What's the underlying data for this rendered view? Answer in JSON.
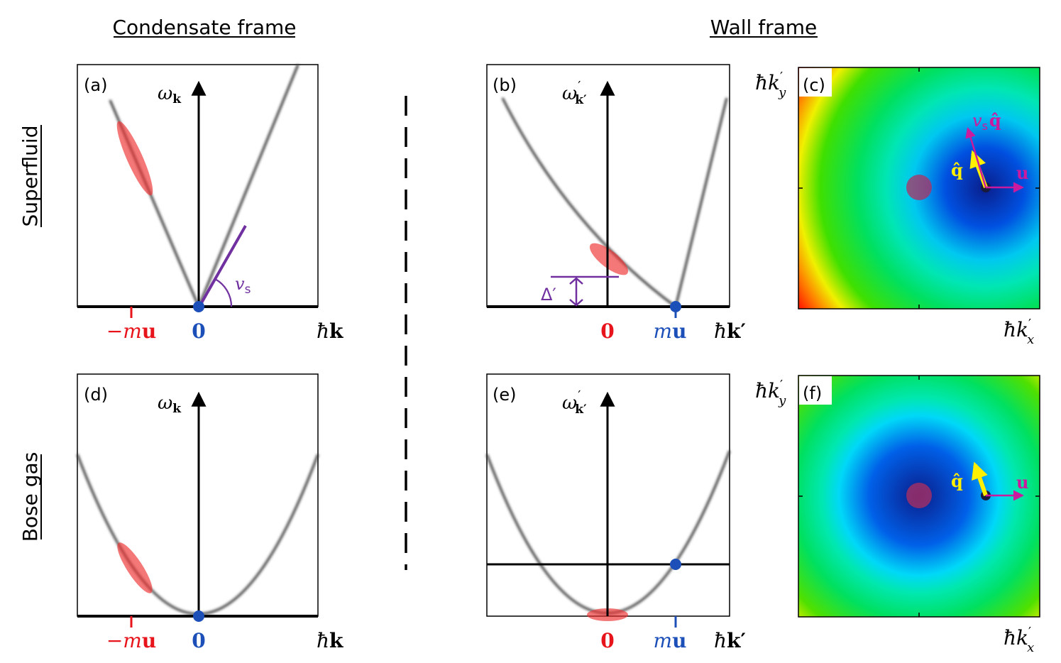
{
  "headers": {
    "left": "Condensate frame",
    "right": "Wall frame",
    "row1": "Superfluid",
    "row2": "Bose gas"
  },
  "panels": {
    "a": "(a)",
    "b": "(b)",
    "c": "(c)",
    "d": "(d)",
    "e": "(e)",
    "f": "(f)"
  },
  "labels": {
    "omega_k": "ω",
    "omega_sub": "k",
    "omega_kp_sub": "k′",
    "prime": "′",
    "hbar_k": "ħ",
    "k_bold": "k",
    "k_prime": "k′",
    "zero": "0",
    "minus_mu_m": "−m",
    "mu_m": "m",
    "u_bold": "u",
    "v_s": "v",
    "v_s_sub": "s",
    "delta_prime": "Δ′",
    "hbar_kx": "ħk",
    "sub_x": "x",
    "sub_y": "y",
    "q_hat": "q̂",
    "vs_q": "v"
  },
  "colors": {
    "red": "#e8141b",
    "blue": "#1c4fb8",
    "purple": "#7030a0",
    "magenta": "#cc1a9e",
    "yellow": "#ffef00"
  }
}
